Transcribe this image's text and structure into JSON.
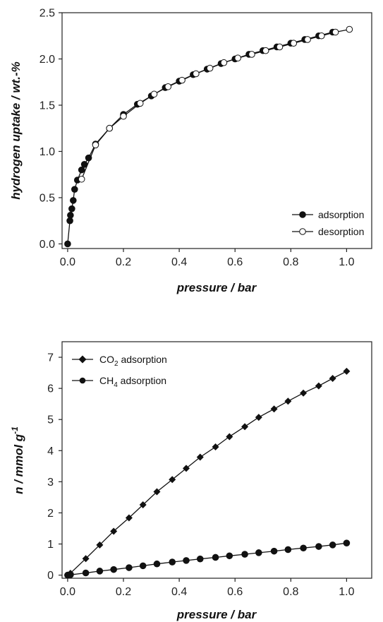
{
  "chart_data": [
    {
      "type": "line",
      "title": "",
      "xlabel": "pressure / bar",
      "ylabel": "hydrogen uptake / wt.-%",
      "xlim": [
        -0.02,
        1.09
      ],
      "ylim": [
        -0.05,
        2.5
      ],
      "xticks": [
        "0.0",
        "0.2",
        "0.4",
        "0.6",
        "0.8",
        "1.0"
      ],
      "yticks": [
        "0.0",
        "0.5",
        "1.0",
        "1.5",
        "2.0",
        "2.5"
      ],
      "xtick_values": [
        0.0,
        0.2,
        0.4,
        0.6,
        0.8,
        1.0
      ],
      "ytick_values": [
        0.0,
        0.5,
        1.0,
        1.5,
        2.0,
        2.5
      ],
      "grid": false,
      "legend_position": "bottom-right",
      "series": [
        {
          "name": "adsorption",
          "marker": "filled-circle",
          "x": [
            0.0,
            0.008,
            0.01,
            0.015,
            0.02,
            0.025,
            0.035,
            0.05,
            0.06,
            0.075,
            0.1,
            0.15,
            0.2,
            0.25,
            0.3,
            0.35,
            0.4,
            0.45,
            0.5,
            0.55,
            0.6,
            0.65,
            0.7,
            0.75,
            0.8,
            0.85,
            0.9,
            0.95
          ],
          "y": [
            0.0,
            0.25,
            0.31,
            0.38,
            0.47,
            0.59,
            0.69,
            0.8,
            0.86,
            0.93,
            1.08,
            1.25,
            1.4,
            1.51,
            1.6,
            1.69,
            1.76,
            1.83,
            1.89,
            1.95,
            2.0,
            2.05,
            2.09,
            2.13,
            2.17,
            2.21,
            2.25,
            2.29
          ]
        },
        {
          "name": "desorption",
          "marker": "open-circle",
          "x": [
            1.01,
            0.96,
            0.91,
            0.86,
            0.81,
            0.76,
            0.71,
            0.66,
            0.61,
            0.56,
            0.51,
            0.46,
            0.41,
            0.36,
            0.31,
            0.26,
            0.2,
            0.15,
            0.1,
            0.05
          ],
          "y": [
            2.32,
            2.29,
            2.25,
            2.21,
            2.17,
            2.13,
            2.09,
            2.05,
            2.01,
            1.96,
            1.9,
            1.84,
            1.77,
            1.7,
            1.62,
            1.52,
            1.38,
            1.25,
            1.07,
            0.7
          ]
        }
      ]
    },
    {
      "type": "line",
      "title": "",
      "xlabel": "pressure / bar",
      "ylabel": "n / mmol g-1",
      "xlim": [
        -0.02,
        1.09
      ],
      "ylim": [
        -0.1,
        7.5
      ],
      "xticks": [
        "0.0",
        "0.2",
        "0.4",
        "0.6",
        "0.8",
        "1.0"
      ],
      "yticks": [
        "0",
        "1",
        "2",
        "3",
        "4",
        "5",
        "6",
        "7"
      ],
      "xtick_values": [
        0.0,
        0.2,
        0.4,
        0.6,
        0.8,
        1.0
      ],
      "ytick_values": [
        0,
        1,
        2,
        3,
        4,
        5,
        6,
        7
      ],
      "grid": false,
      "legend_position": "top-left",
      "series": [
        {
          "name": "CO2 adsorption",
          "marker": "filled-diamond",
          "x": [
            0.0,
            0.01,
            0.065,
            0.115,
            0.165,
            0.22,
            0.27,
            0.32,
            0.375,
            0.425,
            0.475,
            0.53,
            0.58,
            0.635,
            0.685,
            0.74,
            0.79,
            0.845,
            0.9,
            0.95,
            1.0
          ],
          "y": [
            0.0,
            0.06,
            0.53,
            0.97,
            1.41,
            1.84,
            2.26,
            2.68,
            3.07,
            3.43,
            3.79,
            4.12,
            4.45,
            4.77,
            5.07,
            5.34,
            5.59,
            5.85,
            6.08,
            6.32,
            6.55
          ]
        },
        {
          "name": "CH4 adsorption",
          "marker": "filled-circle",
          "x": [
            0.0,
            0.01,
            0.065,
            0.115,
            0.165,
            0.22,
            0.27,
            0.32,
            0.375,
            0.425,
            0.475,
            0.53,
            0.58,
            0.635,
            0.685,
            0.74,
            0.79,
            0.845,
            0.9,
            0.95,
            1.0
          ],
          "y": [
            0.0,
            0.01,
            0.07,
            0.13,
            0.18,
            0.24,
            0.3,
            0.36,
            0.42,
            0.47,
            0.52,
            0.57,
            0.62,
            0.67,
            0.72,
            0.77,
            0.82,
            0.87,
            0.92,
            0.97,
            1.03
          ]
        }
      ]
    }
  ],
  "ui": {
    "chart1": {
      "legend_adsorption": "adsorption",
      "legend_desorption": "desorption"
    },
    "chart2": {
      "legend_co2_main": "CO",
      "legend_co2_sub": "2",
      "legend_co2_rest": " adsorption",
      "legend_ch4_main": "CH",
      "legend_ch4_sub": "4",
      "legend_ch4_rest": " adsorption",
      "ylabel_main": "n / mmol g",
      "ylabel_sup": "-1"
    }
  }
}
